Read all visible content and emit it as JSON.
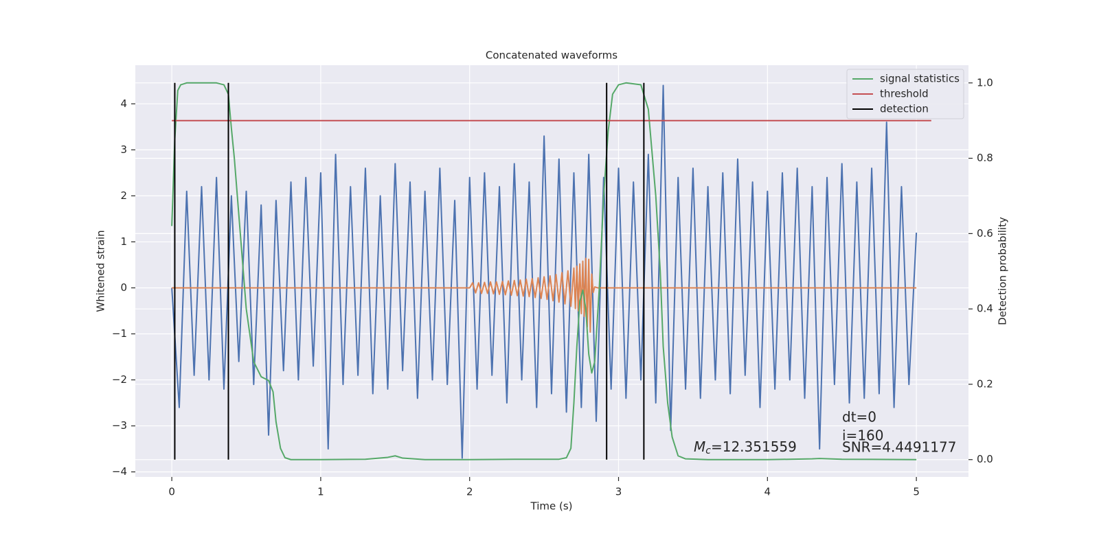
{
  "chart_data": {
    "type": "line",
    "title": "Concatenated waveforms",
    "xlabel": "Time (s)",
    "ylabel": "Whitened strain",
    "y2label": "Detection probability",
    "xlim": [
      -0.245,
      5.35
    ],
    "ylim": [
      -4.11,
      4.84
    ],
    "y2lim": [
      -0.046,
      1.047
    ],
    "xticks": [
      0,
      1,
      2,
      3,
      4,
      5
    ],
    "yticks": [
      {
        "value": -4,
        "label": "−4"
      },
      {
        "value": -3,
        "label": "−3"
      },
      {
        "value": -2,
        "label": "−2"
      },
      {
        "value": -1,
        "label": "−1"
      },
      0,
      1,
      2,
      3,
      4
    ],
    "y2ticks": [
      {
        "value": 0,
        "label": "0.0"
      },
      0.2,
      0.4,
      0.6,
      0.8,
      {
        "value": 1,
        "label": "1.0"
      }
    ],
    "grid": true,
    "legend": "upper right",
    "series": [
      {
        "color": "#4c72b0",
        "x": [
          0,
          0.05,
          0.1,
          0.15,
          0.2,
          0.25,
          0.3,
          0.35,
          0.4,
          0.45,
          0.5,
          0.55,
          0.6,
          0.65,
          0.7,
          0.75,
          0.8,
          0.85,
          0.9,
          0.95,
          1,
          1.05,
          1.1,
          1.15,
          1.2,
          1.25,
          1.3,
          1.35,
          1.4,
          1.45,
          1.5,
          1.55,
          1.6,
          1.65,
          1.7,
          1.75,
          1.8,
          1.85,
          1.9,
          1.95,
          2,
          2.05,
          2.1,
          2.15,
          2.2,
          2.25,
          2.3,
          2.35,
          2.4,
          2.45,
          2.5,
          2.55,
          2.6,
          2.65,
          2.7,
          2.75,
          2.8,
          2.85,
          2.9,
          2.95,
          3,
          3.05,
          3.1,
          3.15,
          3.2,
          3.25,
          3.3,
          3.35,
          3.4,
          3.45,
          3.5,
          3.55,
          3.6,
          3.65,
          3.7,
          3.75,
          3.8,
          3.85,
          3.9,
          3.95,
          4,
          4.05,
          4.1,
          4.15,
          4.2,
          4.25,
          4.3,
          4.35,
          4.4,
          4.45,
          4.5,
          4.55,
          4.6,
          4.65,
          4.7,
          4.75,
          4.8,
          4.85,
          4.9,
          4.95,
          5
        ],
        "values": [
          0,
          -2.6,
          2.1,
          -1.9,
          2.2,
          -2.0,
          2.4,
          -2.2,
          2.0,
          -1.6,
          2.1,
          -2.1,
          1.8,
          -3.2,
          1.9,
          -1.8,
          2.3,
          -2.0,
          2.4,
          -1.7,
          2.5,
          -3.5,
          2.9,
          -2.1,
          2.2,
          -1.9,
          2.6,
          -2.3,
          2.0,
          -2.2,
          2.7,
          -1.8,
          2.3,
          -2.4,
          2.1,
          -2.0,
          2.6,
          -2.1,
          1.9,
          -3.7,
          2.4,
          -2.2,
          2.5,
          -1.9,
          2.2,
          -2.5,
          2.7,
          -2.0,
          2.3,
          -2.6,
          3.3,
          -2.3,
          2.8,
          -2.7,
          2.5,
          -2.6,
          2.9,
          -2.9,
          2.4,
          -2.2,
          2.6,
          -2.4,
          2.3,
          -2.0,
          2.9,
          -2.5,
          4.4,
          -3.1,
          2.4,
          -2.2,
          2.6,
          -2.4,
          2.2,
          -2.0,
          2.5,
          -2.3,
          2.8,
          -1.9,
          2.3,
          -2.6,
          2.1,
          -2.2,
          2.5,
          -2.0,
          2.6,
          -2.4,
          2.2,
          -3.5,
          2.4,
          -2.1,
          2.7,
          -2.5,
          2.3,
          -2.4,
          2.6,
          -2.3,
          3.6,
          -2.6,
          2.2,
          -2.1,
          1.2
        ]
      },
      {
        "color": "#dd8452",
        "x": [
          0,
          2.0,
          2.02,
          2.04,
          2.06,
          2.08,
          2.1,
          2.12,
          2.14,
          2.16,
          2.18,
          2.2,
          2.22,
          2.24,
          2.26,
          2.28,
          2.3,
          2.32,
          2.34,
          2.36,
          2.38,
          2.4,
          2.42,
          2.44,
          2.46,
          2.48,
          2.5,
          2.52,
          2.54,
          2.56,
          2.58,
          2.6,
          2.62,
          2.64,
          2.66,
          2.68,
          2.7,
          2.71,
          2.72,
          2.73,
          2.74,
          2.75,
          2.76,
          2.77,
          2.78,
          2.79,
          2.8,
          2.81,
          2.82,
          2.83,
          2.84,
          2.86,
          5.0
        ],
        "values": [
          0,
          0,
          0.11,
          -0.11,
          0.11,
          -0.12,
          0.12,
          -0.12,
          0.13,
          -0.13,
          0.13,
          -0.14,
          0.14,
          -0.15,
          0.15,
          -0.16,
          0.16,
          -0.17,
          0.17,
          -0.18,
          0.19,
          -0.19,
          0.2,
          -0.21,
          0.22,
          -0.23,
          0.24,
          -0.25,
          0.26,
          -0.28,
          0.29,
          -0.31,
          0.33,
          -0.35,
          0.37,
          -0.4,
          0.43,
          -0.45,
          0.47,
          -0.5,
          0.52,
          -0.56,
          0.58,
          -0.62,
          0.64,
          -0.85,
          0.62,
          -0.96,
          0.3,
          -0.1,
          0.02,
          0,
          0
        ]
      },
      {
        "name": "signal statistics",
        "color": "#55a868",
        "axis": "y2",
        "x": [
          0,
          0.02,
          0.04,
          0.06,
          0.1,
          0.2,
          0.3,
          0.35,
          0.38,
          0.4,
          0.42,
          0.45,
          0.5,
          0.55,
          0.6,
          0.65,
          0.68,
          0.7,
          0.73,
          0.76,
          0.8,
          1.0,
          1.3,
          1.45,
          1.5,
          1.55,
          1.7,
          2.0,
          2.3,
          2.6,
          2.65,
          2.68,
          2.7,
          2.72,
          2.74,
          2.76,
          2.78,
          2.8,
          2.82,
          2.84,
          2.87,
          2.9,
          2.93,
          2.96,
          3.0,
          3.05,
          3.15,
          3.2,
          3.25,
          3.28,
          3.3,
          3.33,
          3.36,
          3.4,
          3.45,
          3.6,
          4.0,
          4.3,
          4.35,
          4.5,
          5.0
        ],
        "values": [
          0.62,
          0.85,
          0.98,
          0.995,
          1.0,
          1.0,
          1.0,
          0.995,
          0.97,
          0.88,
          0.8,
          0.65,
          0.4,
          0.26,
          0.22,
          0.21,
          0.18,
          0.1,
          0.03,
          0.005,
          0,
          0,
          0.001,
          0.006,
          0.01,
          0.004,
          0,
          0,
          0.001,
          0.001,
          0.005,
          0.03,
          0.15,
          0.3,
          0.42,
          0.45,
          0.4,
          0.28,
          0.23,
          0.26,
          0.45,
          0.7,
          0.87,
          0.97,
          0.995,
          1.0,
          0.995,
          0.93,
          0.7,
          0.5,
          0.3,
          0.15,
          0.06,
          0.01,
          0.002,
          0,
          0,
          0.002,
          0.003,
          0.001,
          0
        ]
      },
      {
        "name": "threshold",
        "color": "#c44e52",
        "axis": "y2",
        "x": [
          0,
          5.1
        ],
        "values": [
          0.9,
          0.9
        ]
      },
      {
        "name": "detection",
        "color": "#000000",
        "axis": "y2",
        "x": [
          0.02,
          0.38,
          2.92,
          3.17
        ],
        "ymin": 0,
        "ymax": 1
      }
    ],
    "annotations": [
      {
        "symbol": "M",
        "subscript": "c",
        "text": "=12.351559"
      },
      {
        "text": "dt=0"
      },
      {
        "text": "i=160"
      },
      {
        "text": "SNR=4.4491177"
      }
    ]
  }
}
